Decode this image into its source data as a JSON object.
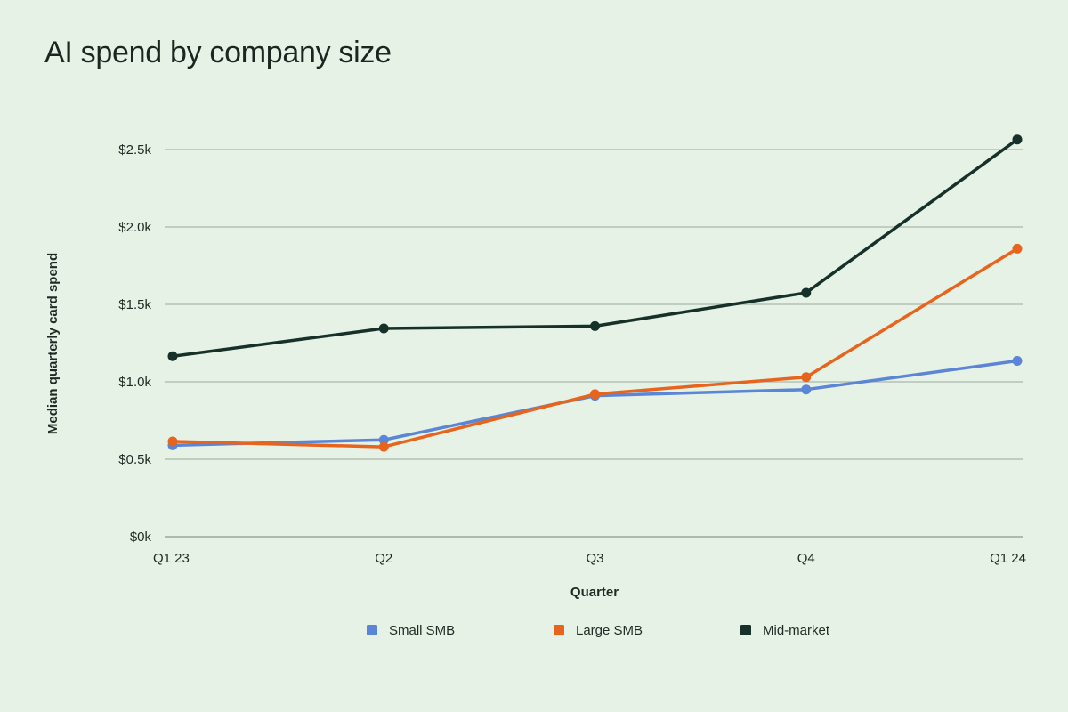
{
  "chart_data": {
    "type": "line",
    "title": "AI spend by company size",
    "xlabel": "Quarter",
    "ylabel": "Median quarterly card spend",
    "categories": [
      "Q1 23",
      "Q2",
      "Q3",
      "Q4",
      "Q1 24"
    ],
    "y_ticks": [
      0,
      500,
      1000,
      1500,
      2000,
      2500
    ],
    "y_tick_labels": [
      "$0k",
      "$0.5k",
      "$1.0k",
      "$1.5k",
      "$2.0k",
      "$2.5k"
    ],
    "ylim": [
      0,
      2500
    ],
    "grid": true,
    "legend_position": "bottom",
    "series": [
      {
        "name": "Small SMB",
        "color": "#5b85d6",
        "values": [
          590,
          625,
          910,
          950,
          1135
        ]
      },
      {
        "name": "Large SMB",
        "color": "#e8641c",
        "values": [
          615,
          580,
          920,
          1030,
          1860
        ]
      },
      {
        "name": "Mid-market",
        "color": "#16302a",
        "values": [
          1165,
          1345,
          1360,
          1575,
          2565
        ]
      }
    ]
  }
}
